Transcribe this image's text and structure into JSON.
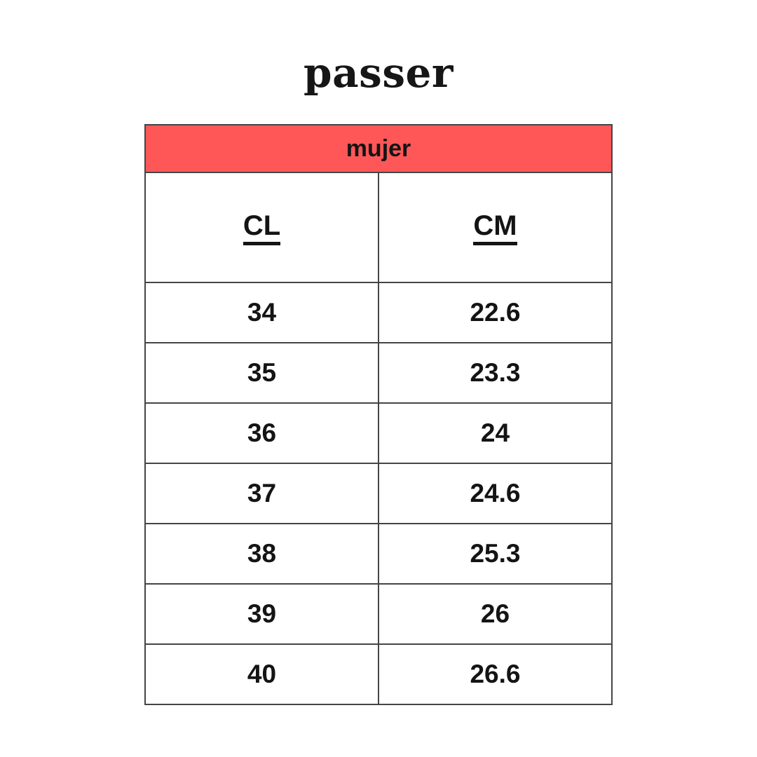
{
  "brand": {
    "logo_text": "passer"
  },
  "size_table": {
    "header": "mujer",
    "columns": [
      "CL",
      "CM"
    ],
    "rows": [
      [
        "34",
        "22.6"
      ],
      [
        "35",
        "23.3"
      ],
      [
        "36",
        "24"
      ],
      [
        "37",
        "24.6"
      ],
      [
        "38",
        "25.3"
      ],
      [
        "39",
        "26"
      ],
      [
        "40",
        "26.6"
      ]
    ]
  },
  "colors": {
    "header_bg": "#FF5757",
    "border": "#454545",
    "text": "#141414",
    "background": "#FFFFFF"
  },
  "chart_data": {
    "type": "table",
    "title": "mujer",
    "columns": [
      "CL",
      "CM"
    ],
    "rows": [
      {
        "CL": 34,
        "CM": 22.6
      },
      {
        "CL": 35,
        "CM": 23.3
      },
      {
        "CL": 36,
        "CM": 24
      },
      {
        "CL": 37,
        "CM": 24.6
      },
      {
        "CL": 38,
        "CM": 25.3
      },
      {
        "CL": 39,
        "CM": 26
      },
      {
        "CL": 40,
        "CM": 26.6
      }
    ]
  }
}
